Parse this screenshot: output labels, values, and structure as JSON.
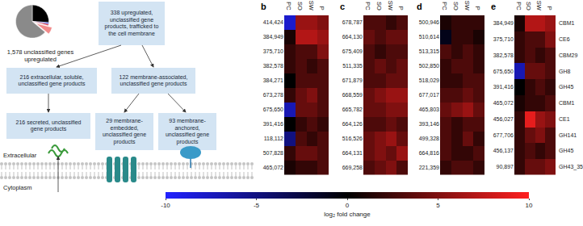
{
  "chart_data": [
    {
      "type": "pie",
      "title": "1,578 unclassified genes upregulated",
      "values": [
        26,
        1.5,
        1.5,
        7,
        64
      ],
      "colors": [
        "#000000",
        "#2b3bd8",
        "#d0243c",
        "#f28a8a",
        "#8a8a8a"
      ]
    },
    {
      "type": "heatmap",
      "title": "b",
      "x": [
        "PC",
        "SO",
        "SW",
        "P"
      ],
      "y": [
        "414,424",
        "384,949",
        "375,710",
        "382,578",
        "384,271",
        "673,278",
        "675,650",
        "391,416",
        "118,112",
        "507,828",
        "465,072"
      ],
      "z": [
        [
          -8,
          6,
          6,
          5
        ],
        [
          1,
          7,
          7,
          6
        ],
        [
          2,
          3,
          3,
          5
        ],
        [
          2,
          3,
          2,
          3
        ],
        [
          0,
          3,
          3,
          3
        ],
        [
          2,
          4,
          5,
          3
        ],
        [
          -7,
          4,
          4,
          3
        ],
        [
          0,
          2,
          3,
          2
        ],
        [
          -5,
          3,
          2,
          3
        ],
        [
          2,
          4,
          4,
          3
        ],
        [
          1,
          2,
          2,
          3
        ]
      ]
    },
    {
      "type": "heatmap",
      "title": "c",
      "x": [
        "PC",
        "SO",
        "SW",
        "P"
      ],
      "y": [
        "678,787",
        "664,130",
        "675,409",
        "511,335",
        "671,879",
        "668,559",
        "665,782",
        "664,126",
        "516,526",
        "664,131",
        "669,258"
      ],
      "z": [
        [
          3,
          3,
          2,
          3
        ],
        [
          4,
          3,
          4,
          4
        ],
        [
          3,
          2,
          3,
          3
        ],
        [
          3,
          4,
          3,
          4
        ],
        [
          3,
          3,
          4,
          4
        ],
        [
          4,
          5,
          6,
          6
        ],
        [
          4,
          4,
          5,
          5
        ],
        [
          3,
          3,
          4,
          3
        ],
        [
          4,
          5,
          6,
          4
        ],
        [
          4,
          5,
          4,
          6
        ],
        [
          3,
          4,
          5,
          3
        ]
      ]
    },
    {
      "type": "heatmap",
      "title": "d",
      "x": [
        "PC",
        "SO",
        "SW",
        "P"
      ],
      "y": [
        "500,946",
        "510,614",
        "513,315",
        "502,850",
        "518,029",
        "677,017",
        "465,803",
        "393,146",
        "499,328",
        "664,816",
        "221,359"
      ],
      "z": [
        [
          1,
          2,
          2,
          2
        ],
        [
          -1,
          2,
          2,
          1
        ],
        [
          3,
          2,
          3,
          2
        ],
        [
          2,
          3,
          3,
          2
        ],
        [
          2,
          2,
          3,
          3
        ],
        [
          3,
          3,
          4,
          3
        ],
        [
          4,
          5,
          6,
          4
        ],
        [
          3,
          2,
          3,
          3
        ],
        [
          3,
          2,
          4,
          2
        ],
        [
          3,
          2,
          2,
          3
        ],
        [
          2,
          3,
          3,
          2
        ]
      ]
    },
    {
      "type": "heatmap",
      "title": "e",
      "x": [
        "PC",
        "SO",
        "SW",
        "P"
      ],
      "y": [
        "384,949",
        "375,710",
        "382,578",
        "675,650",
        "391,416",
        "465,072",
        "456,027",
        "677,706",
        "456,137",
        "90,897"
      ],
      "z": [
        [
          1,
          7,
          7,
          6
        ],
        [
          2,
          3,
          3,
          5
        ],
        [
          2,
          3,
          2,
          3
        ],
        [
          -7,
          4,
          4,
          3
        ],
        [
          0,
          2,
          3,
          2
        ],
        [
          1,
          2,
          2,
          3
        ],
        [
          2,
          9,
          6,
          5
        ],
        [
          2,
          4,
          5,
          3
        ],
        [
          2,
          3,
          2,
          3
        ],
        [
          2,
          4,
          4,
          5
        ]
      ],
      "annotations": [
        "CBM1",
        "CE6",
        "CBM29",
        "GH8",
        "GH45",
        "CBM1",
        "CE1",
        "GH141",
        "GH45",
        "GH43_35"
      ]
    }
  ],
  "colorbar": {
    "title": "log₂ fold change",
    "range": [
      -10,
      10
    ],
    "ticks": [
      -10,
      -5,
      0,
      5,
      10
    ],
    "colors": [
      "#2222ff",
      "#000000",
      "#ff2020"
    ]
  },
  "diagram": {
    "boxes": [
      "338 upregulated, unclassified gene products, trafficked to the cell membrane",
      "216 extracellular, soluble, unclassified gene products",
      "122 membrane-associated, unclassified gene products",
      "216 secreted, unclassified gene products",
      "29 membrane-embedded, unclassified gene products",
      "93 membrane-anchored, unclassified gene products"
    ],
    "labels": [
      "Extracellular",
      "Cytoplasm"
    ]
  }
}
